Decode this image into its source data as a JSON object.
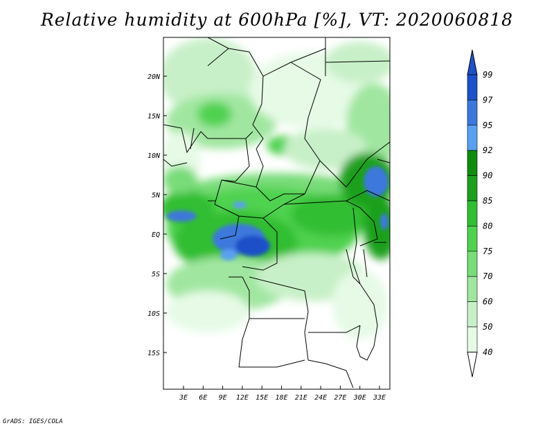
{
  "title": "Relative humidity at 600hPa [%], VT: 2020060818",
  "credit": "GrADS: IGES/COLA",
  "map": {
    "lat_labels": [
      "20N",
      "15N",
      "10N",
      "5N",
      "EQ",
      "5S",
      "10S",
      "15S"
    ],
    "lon_labels": [
      "3E",
      "6E",
      "9E",
      "12E",
      "15E",
      "18E",
      "21E",
      "24E",
      "27E",
      "30E",
      "33E"
    ]
  },
  "colorbar": {
    "levels": [
      "40",
      "50",
      "60",
      "70",
      "75",
      "80",
      "85",
      "90",
      "92",
      "95",
      "97",
      "99"
    ],
    "colors": [
      "#ffffff",
      "#e6fae6",
      "#c8f0c8",
      "#a0e6a0",
      "#78dc78",
      "#50d250",
      "#32be32",
      "#1ea01e",
      "#0f8c0f",
      "#5aa0f0",
      "#3c78dc",
      "#1e50c8"
    ],
    "top_color": "#1e50c8",
    "bottom_color": "#ffffff"
  }
}
